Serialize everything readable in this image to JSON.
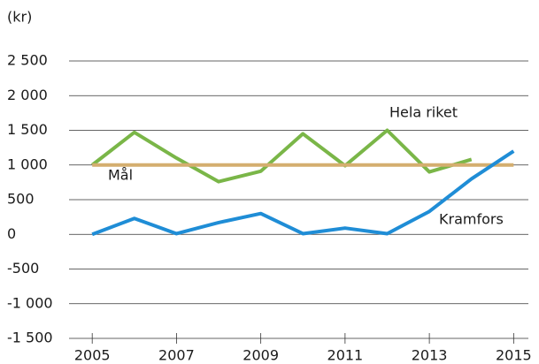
{
  "chart_data": {
    "type": "line",
    "y_unit_label": "(kr)",
    "x": [
      2005,
      2006,
      2007,
      2008,
      2009,
      2010,
      2011,
      2012,
      2013,
      2014,
      2015
    ],
    "series": [
      {
        "name": "Hela riket",
        "color": "#7ab648",
        "values": [
          1000,
          1470,
          1100,
          760,
          910,
          1450,
          990,
          1500,
          900,
          1080,
          null
        ]
      },
      {
        "name": "Mål",
        "color": "#d4ae6f",
        "values": [
          1000,
          1000,
          1000,
          1000,
          1000,
          1000,
          1000,
          1000,
          1000,
          1000,
          1000
        ]
      },
      {
        "name": "Kramfors",
        "color": "#1f8dd6",
        "values": [
          0,
          230,
          10,
          170,
          300,
          10,
          90,
          10,
          330,
          800,
          1200
        ]
      }
    ],
    "xlim": [
      2004.45,
      2015.35
    ],
    "xticks": [
      2005,
      2007,
      2009,
      2011,
      2013,
      2015
    ],
    "ylim": [
      -1500,
      2500
    ],
    "yticks": [
      {
        "value": -1500,
        "label": "-1 500"
      },
      {
        "value": -1000,
        "label": "-1 000"
      },
      -500,
      0,
      500,
      {
        "value": 1000,
        "label": "1 000"
      },
      {
        "value": 1500,
        "label": "1 500"
      },
      {
        "value": 2000,
        "label": "2 000"
      },
      {
        "value": 2500,
        "label": "2 500"
      }
    ],
    "grid": true
  }
}
